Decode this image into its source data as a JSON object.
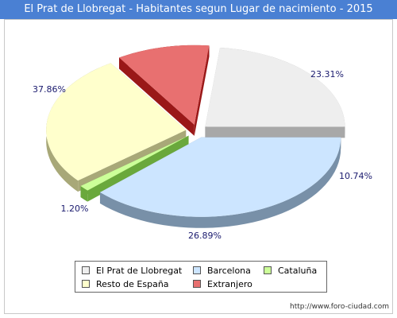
{
  "chart_data": {
    "type": "pie",
    "title": "El Prat de Llobregat - Habitantes segun Lugar de nacimiento - 2015",
    "slices": [
      {
        "name": "El Prat de Llobregat",
        "value": 23.31,
        "label": "23.31%",
        "color": "#eeeeee",
        "side": "#a8a8a8"
      },
      {
        "name": "Extranjero",
        "value": 10.74,
        "label": "10.74%",
        "color": "#e87070",
        "side": "#9a1818"
      },
      {
        "name": "Resto de España",
        "value": 26.89,
        "label": "26.89%",
        "color": "#ffffcc",
        "side": "#a8a878"
      },
      {
        "name": "Cataluña",
        "value": 1.2,
        "label": "1.20%",
        "color": "#ccff99",
        "side": "#6aa83c"
      },
      {
        "name": "Barcelona",
        "value": 37.86,
        "label": "37.86%",
        "color": "#cce5ff",
        "side": "#7890a8"
      }
    ],
    "legend": {
      "placement": "bottom",
      "entries": [
        "El Prat de Llobregat",
        "Barcelona",
        "Cataluña",
        "Resto de España",
        "Extranjero"
      ]
    }
  },
  "footer": {
    "watermark": "http://www.foro-ciudad.com"
  }
}
